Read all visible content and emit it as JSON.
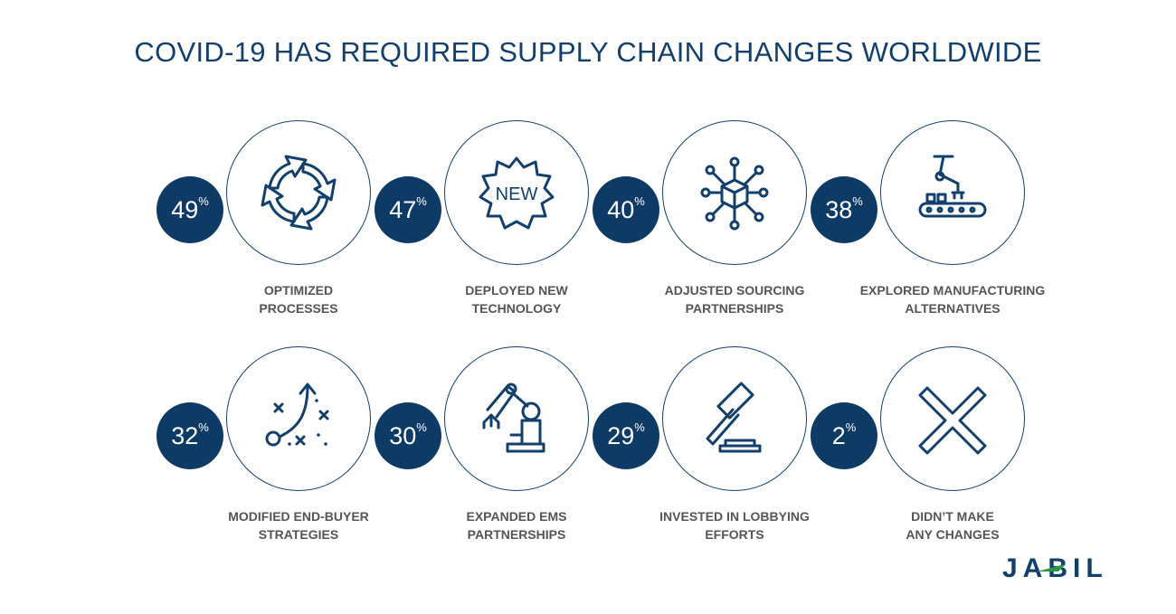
{
  "title": "COVID-19 HAS REQUIRED SUPPLY CHAIN CHANGES WORLDWIDE",
  "colors": {
    "navy": "#0e3a66",
    "label_gray": "#555555",
    "logo_green": "#2a9a4a"
  },
  "items": [
    {
      "value": "49",
      "unit": "%",
      "label1": "OPTIMIZED",
      "label2": "PROCESSES",
      "icon": "cycle-arrows-icon"
    },
    {
      "value": "47",
      "unit": "%",
      "label1": "DEPLOYED NEW",
      "label2": "TECHNOLOGY",
      "icon": "new-badge-icon",
      "icon_text": "NEW"
    },
    {
      "value": "40",
      "unit": "%",
      "label1": "ADJUSTED SOURCING",
      "label2": "PARTNERSHIPS",
      "icon": "network-cube-icon"
    },
    {
      "value": "38",
      "unit": "%",
      "label1": "EXPLORED MANUFACTURING",
      "label2": "ALTERNATIVES",
      "icon": "robot-conveyor-icon"
    },
    {
      "value": "32",
      "unit": "%",
      "label1": "MODIFIED END-BUYER",
      "label2": "STRATEGIES",
      "icon": "strategy-play-icon"
    },
    {
      "value": "30",
      "unit": "%",
      "label1": "EXPANDED EMS",
      "label2": "PARTNERSHIPS",
      "icon": "robot-arm-icon"
    },
    {
      "value": "29",
      "unit": "%",
      "label1": "INVESTED IN LOBBYING",
      "label2": "EFFORTS",
      "icon": "gavel-icon"
    },
    {
      "value": "2",
      "unit": "%",
      "label1": "DIDN’T MAKE",
      "label2": "ANY CHANGES",
      "icon": "x-mark-icon"
    }
  ],
  "logo": "JABIL"
}
